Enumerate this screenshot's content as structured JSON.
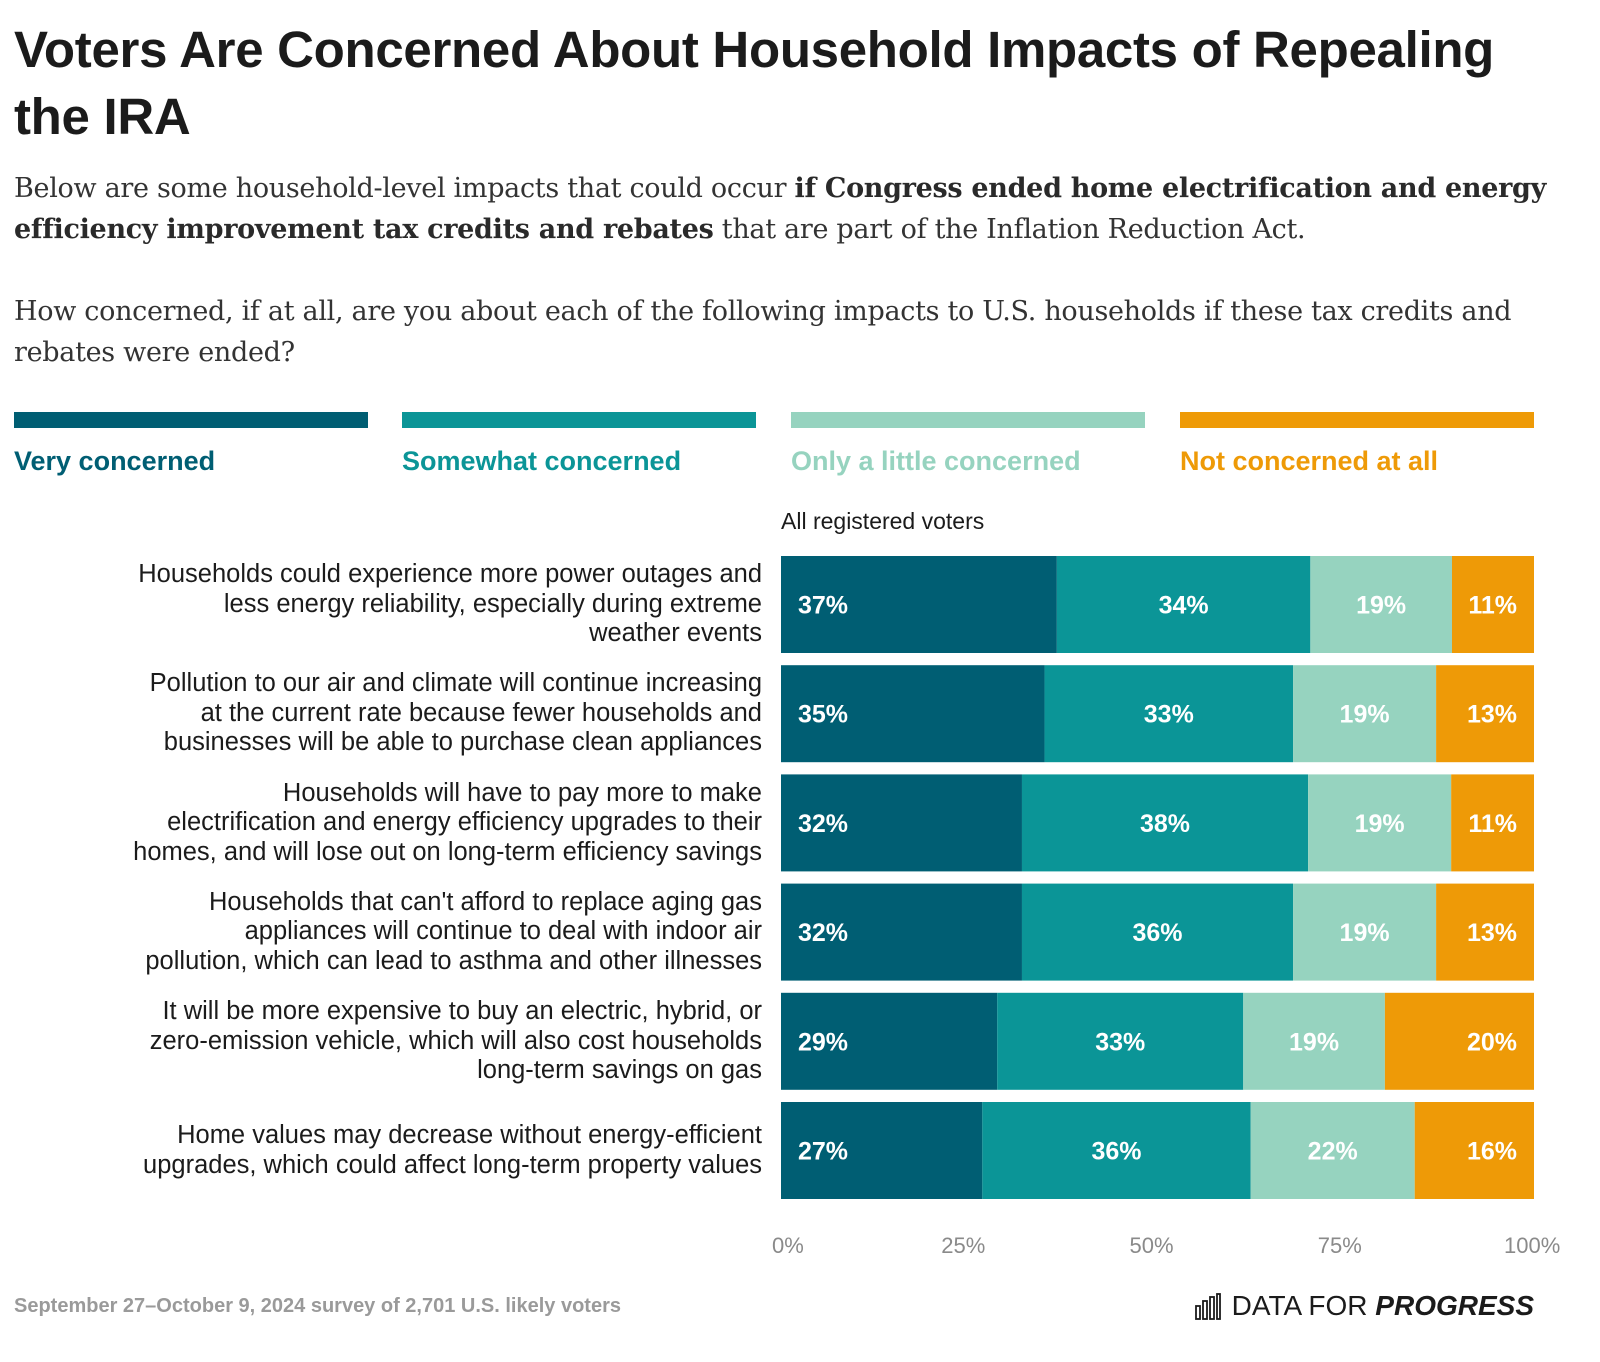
{
  "title": "Voters Are Concerned About Household Impacts of Repealing the IRA",
  "subtitle": {
    "before": "Below are some household-level impacts that could occur ",
    "bold": "if Congress ended home electrification and energy efficiency improvement tax credits and rebates",
    "after": " that are part of the Inflation Reduction Act."
  },
  "question": "How concerned, if at all, are you about each of the following impacts to U.S. households if these tax credits and rebates were ended?",
  "legend": [
    {
      "label": "Very concerned",
      "color": "#005e73"
    },
    {
      "label": "Somewhat concerned",
      "color": "#0b9597"
    },
    {
      "label": "Only a little concerned",
      "color": "#96d3bf"
    },
    {
      "label": "Not concerned at all",
      "color": "#ee9a07"
    }
  ],
  "footer": {
    "note": "September 27–October 9, 2024 survey of 2,701 U.S. likely voters",
    "brand_plain": "DATA FOR ",
    "brand_bold": "PROGRESS"
  },
  "chart_data": {
    "type": "bar",
    "orientation": "horizontal",
    "stacked": true,
    "group_label": "All registered voters",
    "categories": [
      "Households could experience more power outages and less energy reliability, especially during extreme weather events",
      "Pollution to our air and climate will continue increasing at the current rate because fewer households and businesses will be able to purchase clean appliances",
      "Households will have to pay more to make electrification and energy efficiency upgrades to their homes, and will lose out on long-term efficiency savings",
      "Households that can't afford to replace aging gas appliances will continue to deal with indoor air pollution, which can lead to asthma and other illnesses",
      "It will be more expensive to buy an electric, hybrid, or zero-emission vehicle, which will also cost households long-term savings on gas",
      "Home values may decrease without energy-efficient upgrades, which could affect long-term property values"
    ],
    "category_lines": [
      [
        "Households could experience more power outages and",
        "less energy reliability, especially during extreme",
        "weather events"
      ],
      [
        "Pollution to our air and climate will continue increasing",
        "at the current rate because fewer households and",
        "businesses will be able to purchase clean appliances"
      ],
      [
        "Households will have to pay more to make",
        "electrification and energy efficiency upgrades to their",
        "homes, and will lose out on long-term efficiency savings"
      ],
      [
        "Households that can't afford to replace aging gas",
        "appliances will continue to deal with indoor air",
        "pollution, which can lead to asthma and other illnesses"
      ],
      [
        "It will be more expensive to buy an electric, hybrid, or",
        "zero-emission vehicle, which will also cost households",
        "long-term savings on gas"
      ],
      [
        "Home values may decrease without energy-efficient",
        "upgrades, which could affect long-term property values"
      ]
    ],
    "series": [
      {
        "name": "Very concerned",
        "color": "#005e73",
        "values": [
          37,
          35,
          32,
          32,
          29,
          27
        ]
      },
      {
        "name": "Somewhat concerned",
        "color": "#0b9597",
        "values": [
          34,
          33,
          38,
          36,
          33,
          36
        ]
      },
      {
        "name": "Only a little concerned",
        "color": "#96d3bf",
        "values": [
          19,
          19,
          19,
          19,
          19,
          22
        ]
      },
      {
        "name": "Not concerned at all",
        "color": "#ee9a07",
        "values": [
          11,
          13,
          11,
          13,
          20,
          16
        ]
      }
    ],
    "x_ticks": [
      "0%",
      "25%",
      "50%",
      "75%",
      "100%"
    ],
    "xlim": [
      0,
      100
    ],
    "grid": false
  }
}
